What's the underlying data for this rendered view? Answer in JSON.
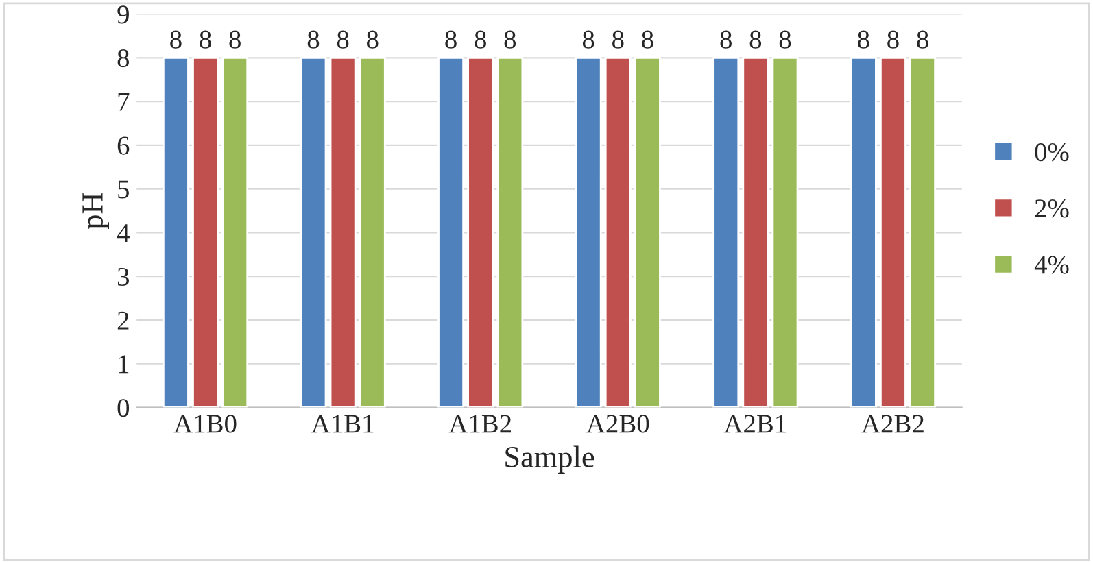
{
  "chart_data": {
    "type": "bar",
    "xlabel": "Sample",
    "ylabel": "pH",
    "categories": [
      "A1B0",
      "A1B1",
      "A1B2",
      "A2B0",
      "A2B1",
      "A2B2"
    ],
    "series": [
      {
        "name": "0%",
        "color": "#4f81bd",
        "values": [
          8,
          8,
          8,
          8,
          8,
          8
        ]
      },
      {
        "name": "2%",
        "color": "#c0504d",
        "values": [
          8,
          8,
          8,
          8,
          8,
          8
        ]
      },
      {
        "name": "4%",
        "color": "#9bbb59",
        "values": [
          8,
          8,
          8,
          8,
          8,
          8
        ]
      }
    ],
    "ylim": [
      0,
      9
    ],
    "yticks": [
      0,
      1,
      2,
      3,
      4,
      5,
      6,
      7,
      8,
      9
    ],
    "grid": "y",
    "legend": "right",
    "data_labels": true
  }
}
